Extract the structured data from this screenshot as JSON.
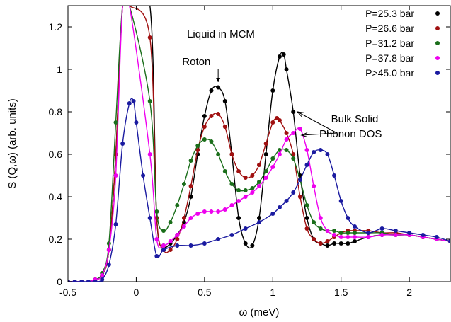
{
  "chart_data": {
    "type": "line",
    "title": "",
    "xlabel": "ω (meV)",
    "ylabel": "S (Q,ω) (arb. units)",
    "xlim": [
      -0.5,
      2.3
    ],
    "ylim": [
      0,
      1.3
    ],
    "xticks": [
      -0.5,
      0,
      0.5,
      1,
      1.5,
      2
    ],
    "xtick_labels": [
      "-0.5",
      "0",
      "0.5",
      "1",
      "1.5",
      "2"
    ],
    "yticks": [
      0,
      0.2,
      0.4,
      0.6,
      0.8,
      1,
      1.2
    ],
    "ytick_labels": [
      "0",
      "0.2",
      "0.4",
      "0.6",
      "0.8",
      "1",
      "1.2"
    ],
    "legend_position": "top-right",
    "series": [
      {
        "name": "P=25.3 bar",
        "color": "#000000",
        "x": [
          -0.5,
          -0.45,
          -0.4,
          -0.35,
          -0.3,
          -0.25,
          -0.2,
          -0.15,
          -0.1,
          -0.05,
          0.1,
          0.15,
          0.2,
          0.25,
          0.3,
          0.35,
          0.4,
          0.45,
          0.5,
          0.55,
          0.6,
          0.65,
          0.7,
          0.75,
          0.8,
          0.85,
          0.9,
          0.95,
          1.0,
          1.05,
          1.08,
          1.1,
          1.15,
          1.2,
          1.25,
          1.3,
          1.35,
          1.4,
          1.45,
          1.5,
          1.55,
          1.6,
          1.7,
          1.8,
          1.9,
          2.0,
          2.1,
          2.2,
          2.3
        ],
        "y": [
          0,
          0,
          0,
          0,
          0.01,
          0.03,
          0.15,
          0.6,
          1.3,
          1.3,
          1.3,
          0.3,
          0.17,
          0.18,
          0.22,
          0.28,
          0.4,
          0.6,
          0.78,
          0.9,
          0.915,
          0.85,
          0.6,
          0.3,
          0.18,
          0.17,
          0.3,
          0.6,
          0.9,
          1.06,
          1.07,
          1.0,
          0.8,
          0.5,
          0.3,
          0.2,
          0.18,
          0.17,
          0.18,
          0.18,
          0.18,
          0.19,
          0.21,
          0.22,
          0.22,
          0.22,
          0.21,
          0.2,
          0.19
        ]
      },
      {
        "name": "P=26.6 bar",
        "color": "#a01010",
        "x": [
          -0.5,
          -0.45,
          -0.4,
          -0.35,
          -0.3,
          -0.25,
          -0.2,
          -0.15,
          -0.1,
          -0.05,
          0.1,
          0.15,
          0.2,
          0.25,
          0.3,
          0.35,
          0.4,
          0.45,
          0.5,
          0.55,
          0.6,
          0.65,
          0.7,
          0.75,
          0.8,
          0.85,
          0.9,
          0.95,
          1.0,
          1.03,
          1.05,
          1.1,
          1.15,
          1.2,
          1.25,
          1.3,
          1.35,
          1.4,
          1.45,
          1.5,
          1.55,
          1.6,
          1.7,
          1.8,
          1.9,
          2.0,
          2.1,
          2.2,
          2.3
        ],
        "y": [
          0,
          0,
          0,
          0,
          0.01,
          0.03,
          0.15,
          0.6,
          1.3,
          1.3,
          1.15,
          0.3,
          0.15,
          0.15,
          0.2,
          0.3,
          0.45,
          0.62,
          0.73,
          0.78,
          0.79,
          0.73,
          0.6,
          0.52,
          0.49,
          0.5,
          0.55,
          0.65,
          0.75,
          0.77,
          0.76,
          0.7,
          0.6,
          0.4,
          0.25,
          0.2,
          0.18,
          0.19,
          0.21,
          0.23,
          0.24,
          0.24,
          0.24,
          0.23,
          0.23,
          0.22,
          0.21,
          0.2,
          0.19
        ]
      },
      {
        "name": "P=31.2 bar",
        "color": "#1a6e1a",
        "x": [
          -0.5,
          -0.45,
          -0.4,
          -0.35,
          -0.3,
          -0.25,
          -0.2,
          -0.15,
          -0.1,
          -0.05,
          0.1,
          0.15,
          0.2,
          0.25,
          0.3,
          0.35,
          0.4,
          0.45,
          0.5,
          0.55,
          0.6,
          0.65,
          0.7,
          0.75,
          0.8,
          0.85,
          0.9,
          0.95,
          1.0,
          1.05,
          1.1,
          1.15,
          1.2,
          1.25,
          1.3,
          1.35,
          1.4,
          1.45,
          1.5,
          1.55,
          1.6,
          1.7,
          1.8,
          1.9,
          2.0,
          2.1,
          2.2,
          2.3
        ],
        "y": [
          0,
          0,
          0,
          0,
          0.01,
          0.04,
          0.18,
          0.75,
          1.3,
          1.3,
          0.85,
          0.33,
          0.24,
          0.28,
          0.36,
          0.46,
          0.57,
          0.64,
          0.67,
          0.66,
          0.6,
          0.52,
          0.46,
          0.43,
          0.43,
          0.44,
          0.47,
          0.52,
          0.58,
          0.62,
          0.62,
          0.58,
          0.48,
          0.36,
          0.28,
          0.25,
          0.24,
          0.24,
          0.23,
          0.23,
          0.23,
          0.23,
          0.23,
          0.22,
          0.22,
          0.21,
          0.2,
          0.19
        ]
      },
      {
        "name": "P=37.8 bar",
        "color": "#ee00ee",
        "x": [
          -0.5,
          -0.45,
          -0.4,
          -0.35,
          -0.3,
          -0.25,
          -0.2,
          -0.15,
          -0.1,
          -0.05,
          0.1,
          0.15,
          0.2,
          0.25,
          0.3,
          0.35,
          0.4,
          0.45,
          0.5,
          0.55,
          0.6,
          0.65,
          0.7,
          0.75,
          0.8,
          0.85,
          0.9,
          0.95,
          1.0,
          1.05,
          1.1,
          1.15,
          1.2,
          1.25,
          1.3,
          1.35,
          1.4,
          1.45,
          1.5,
          1.55,
          1.6,
          1.7,
          1.8,
          1.9,
          2.0,
          2.1,
          2.2,
          2.3
        ],
        "y": [
          0,
          0,
          0,
          0,
          0.01,
          0.03,
          0.15,
          0.5,
          1.3,
          1.3,
          0.6,
          0.2,
          0.17,
          0.19,
          0.22,
          0.26,
          0.3,
          0.32,
          0.33,
          0.33,
          0.33,
          0.34,
          0.36,
          0.38,
          0.4,
          0.42,
          0.45,
          0.49,
          0.54,
          0.6,
          0.67,
          0.7,
          0.72,
          0.62,
          0.45,
          0.3,
          0.24,
          0.22,
          0.21,
          0.21,
          0.21,
          0.21,
          0.22,
          0.22,
          0.22,
          0.21,
          0.2,
          0.19
        ]
      },
      {
        "name": "P>45.0 bar",
        "color": "#1a1aa0",
        "x": [
          -0.5,
          -0.45,
          -0.4,
          -0.35,
          -0.3,
          -0.25,
          -0.2,
          -0.15,
          -0.1,
          -0.05,
          -0.02,
          0.0,
          0.05,
          0.1,
          0.15,
          0.2,
          0.3,
          0.4,
          0.5,
          0.6,
          0.7,
          0.8,
          0.9,
          1.0,
          1.05,
          1.1,
          1.15,
          1.2,
          1.25,
          1.3,
          1.35,
          1.4,
          1.45,
          1.5,
          1.55,
          1.6,
          1.7,
          1.8,
          1.9,
          2.0,
          2.1,
          2.2,
          2.3
        ],
        "y": [
          0,
          0,
          0,
          0,
          0,
          0.01,
          0.08,
          0.27,
          0.65,
          0.84,
          0.85,
          0.75,
          0.5,
          0.3,
          0.12,
          0.15,
          0.17,
          0.17,
          0.18,
          0.2,
          0.22,
          0.25,
          0.28,
          0.32,
          0.35,
          0.38,
          0.42,
          0.48,
          0.55,
          0.61,
          0.62,
          0.6,
          0.5,
          0.38,
          0.3,
          0.26,
          0.23,
          0.25,
          0.24,
          0.23,
          0.22,
          0.21,
          0.19
        ]
      }
    ],
    "annotations": [
      {
        "text": "Liquid in MCM",
        "x": 0.62,
        "y": 1.15
      },
      {
        "text": "Roton",
        "x": 0.44,
        "y": 1.02
      },
      {
        "text": "Bulk Solid",
        "x": 1.6,
        "y": 0.75
      },
      {
        "text": "Phonon DOS",
        "x": 1.57,
        "y": 0.68
      }
    ]
  }
}
